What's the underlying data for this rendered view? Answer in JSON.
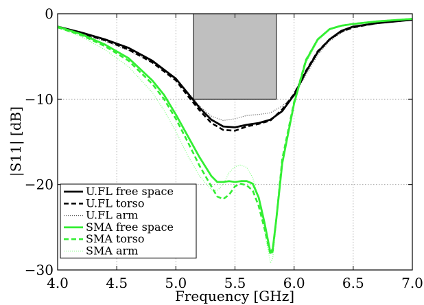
{
  "chart_data": {
    "type": "line",
    "title": "",
    "xlabel": "Frequency [GHz]",
    "ylabel": "|S11| [dB]",
    "xlim": [
      4.0,
      7.0
    ],
    "ylim": [
      -30,
      0
    ],
    "x_ticks": [
      "4.0",
      "4.5",
      "5.0",
      "5.5",
      "6.0",
      "6.5",
      "7.0"
    ],
    "y_ticks": [
      "0",
      "−10",
      "−20",
      "−30"
    ],
    "grid": true,
    "legend_position": "bottom-left",
    "shaded_region": {
      "x": [
        5.15,
        5.85
      ],
      "y": [
        -10,
        0
      ],
      "color": "#bfbfbf"
    },
    "series": [
      {
        "name": "U.FL free space",
        "color": "#000000",
        "style": "solid",
        "points": [
          [
            4.0,
            -1.5
          ],
          [
            4.2,
            -2.2
          ],
          [
            4.4,
            -3.0
          ],
          [
            4.6,
            -4.0
          ],
          [
            4.8,
            -5.5
          ],
          [
            5.0,
            -7.6
          ],
          [
            5.1,
            -9.3
          ],
          [
            5.2,
            -11.0
          ],
          [
            5.3,
            -12.4
          ],
          [
            5.4,
            -13.2
          ],
          [
            5.5,
            -13.3
          ],
          [
            5.6,
            -13.0
          ],
          [
            5.7,
            -12.8
          ],
          [
            5.8,
            -12.4
          ],
          [
            5.9,
            -11.4
          ],
          [
            6.0,
            -9.5
          ],
          [
            6.1,
            -6.8
          ],
          [
            6.2,
            -4.5
          ],
          [
            6.3,
            -3.0
          ],
          [
            6.4,
            -2.0
          ],
          [
            6.5,
            -1.5
          ],
          [
            6.7,
            -1.1
          ],
          [
            7.0,
            -0.7
          ]
        ]
      },
      {
        "name": "U.FL torso",
        "color": "#000000",
        "style": "dashed",
        "points": [
          [
            4.0,
            -1.5
          ],
          [
            4.2,
            -2.3
          ],
          [
            4.4,
            -3.1
          ],
          [
            4.6,
            -4.2
          ],
          [
            4.8,
            -5.7
          ],
          [
            5.0,
            -7.8
          ],
          [
            5.1,
            -9.6
          ],
          [
            5.2,
            -11.3
          ],
          [
            5.3,
            -12.8
          ],
          [
            5.4,
            -13.6
          ],
          [
            5.5,
            -13.7
          ],
          [
            5.6,
            -13.2
          ],
          [
            5.7,
            -12.9
          ],
          [
            5.8,
            -12.5
          ],
          [
            5.9,
            -11.2
          ],
          [
            6.0,
            -9.4
          ],
          [
            6.1,
            -6.7
          ],
          [
            6.2,
            -4.4
          ],
          [
            6.3,
            -3.0
          ],
          [
            6.4,
            -2.1
          ],
          [
            6.5,
            -1.6
          ],
          [
            6.7,
            -1.1
          ],
          [
            7.0,
            -0.7
          ]
        ]
      },
      {
        "name": "U.FL arm",
        "color": "#555555",
        "style": "dotted",
        "points": [
          [
            4.0,
            -1.6
          ],
          [
            4.2,
            -2.4
          ],
          [
            4.4,
            -3.2
          ],
          [
            4.6,
            -4.3
          ],
          [
            4.8,
            -5.7
          ],
          [
            5.0,
            -7.7
          ],
          [
            5.1,
            -9.2
          ],
          [
            5.2,
            -10.8
          ],
          [
            5.3,
            -12.0
          ],
          [
            5.4,
            -12.5
          ],
          [
            5.5,
            -12.3
          ],
          [
            5.6,
            -11.9
          ],
          [
            5.7,
            -11.8
          ],
          [
            5.8,
            -11.6
          ],
          [
            5.9,
            -10.8
          ],
          [
            6.0,
            -9.6
          ],
          [
            6.1,
            -7.2
          ],
          [
            6.2,
            -4.8
          ],
          [
            6.3,
            -3.2
          ],
          [
            6.4,
            -2.2
          ],
          [
            6.5,
            -1.6
          ],
          [
            6.7,
            -1.1
          ],
          [
            7.0,
            -0.7
          ]
        ]
      },
      {
        "name": "SMA free space",
        "color": "#33ee33",
        "style": "solid",
        "points": [
          [
            4.0,
            -1.5
          ],
          [
            4.2,
            -2.4
          ],
          [
            4.4,
            -3.6
          ],
          [
            4.6,
            -5.2
          ],
          [
            4.8,
            -7.8
          ],
          [
            4.9,
            -9.5
          ],
          [
            5.0,
            -11.8
          ],
          [
            5.1,
            -14.3
          ],
          [
            5.2,
            -16.8
          ],
          [
            5.3,
            -19.0
          ],
          [
            5.35,
            -19.7
          ],
          [
            5.4,
            -19.7
          ],
          [
            5.45,
            -19.6
          ],
          [
            5.5,
            -19.7
          ],
          [
            5.55,
            -19.6
          ],
          [
            5.6,
            -19.6
          ],
          [
            5.65,
            -19.9
          ],
          [
            5.7,
            -21.5
          ],
          [
            5.75,
            -24.5
          ],
          [
            5.8,
            -28.0
          ],
          [
            5.82,
            -27.5
          ],
          [
            5.85,
            -24.0
          ],
          [
            5.9,
            -17.5
          ],
          [
            6.0,
            -10.5
          ],
          [
            6.1,
            -5.5
          ],
          [
            6.2,
            -3.0
          ],
          [
            6.3,
            -1.8
          ],
          [
            6.4,
            -1.4
          ],
          [
            6.5,
            -1.2
          ],
          [
            6.7,
            -0.9
          ],
          [
            7.0,
            -0.6
          ]
        ]
      },
      {
        "name": "SMA torso",
        "color": "#33ee33",
        "style": "dashed",
        "points": [
          [
            4.0,
            -1.6
          ],
          [
            4.2,
            -2.5
          ],
          [
            4.4,
            -3.8
          ],
          [
            4.6,
            -5.5
          ],
          [
            4.8,
            -8.2
          ],
          [
            4.9,
            -10.0
          ],
          [
            5.0,
            -12.3
          ],
          [
            5.1,
            -15.0
          ],
          [
            5.2,
            -17.8
          ],
          [
            5.3,
            -20.2
          ],
          [
            5.35,
            -21.4
          ],
          [
            5.4,
            -21.7
          ],
          [
            5.45,
            -21.2
          ],
          [
            5.5,
            -20.2
          ],
          [
            5.55,
            -19.9
          ],
          [
            5.6,
            -20.1
          ],
          [
            5.65,
            -20.7
          ],
          [
            5.7,
            -22.5
          ],
          [
            5.75,
            -25.2
          ],
          [
            5.8,
            -28.2
          ],
          [
            5.82,
            -27.8
          ],
          [
            5.85,
            -24.0
          ],
          [
            5.9,
            -17.0
          ],
          [
            6.0,
            -10.3
          ],
          [
            6.1,
            -5.4
          ],
          [
            6.2,
            -3.0
          ],
          [
            6.3,
            -1.8
          ],
          [
            6.4,
            -1.4
          ],
          [
            6.5,
            -1.2
          ],
          [
            6.7,
            -0.9
          ],
          [
            7.0,
            -0.6
          ]
        ]
      },
      {
        "name": "SMA arm",
        "color": "#88ff88",
        "style": "dotted",
        "points": [
          [
            4.0,
            -1.6
          ],
          [
            4.2,
            -2.7
          ],
          [
            4.4,
            -4.2
          ],
          [
            4.6,
            -6.2
          ],
          [
            4.8,
            -9.2
          ],
          [
            4.9,
            -11.3
          ],
          [
            5.0,
            -13.8
          ],
          [
            5.1,
            -16.6
          ],
          [
            5.2,
            -19.0
          ],
          [
            5.3,
            -20.6
          ],
          [
            5.35,
            -20.7
          ],
          [
            5.4,
            -20.0
          ],
          [
            5.45,
            -18.6
          ],
          [
            5.5,
            -17.9
          ],
          [
            5.55,
            -17.7
          ],
          [
            5.6,
            -18.0
          ],
          [
            5.65,
            -19.2
          ],
          [
            5.7,
            -21.5
          ],
          [
            5.75,
            -25.5
          ],
          [
            5.8,
            -29.2
          ],
          [
            5.82,
            -28.6
          ],
          [
            5.85,
            -24.5
          ],
          [
            5.9,
            -17.5
          ],
          [
            6.0,
            -10.6
          ],
          [
            6.1,
            -5.8
          ],
          [
            6.2,
            -3.2
          ],
          [
            6.3,
            -1.9
          ],
          [
            6.4,
            -1.4
          ],
          [
            6.5,
            -1.2
          ],
          [
            6.7,
            -0.9
          ],
          [
            7.0,
            -0.6
          ]
        ]
      }
    ]
  }
}
